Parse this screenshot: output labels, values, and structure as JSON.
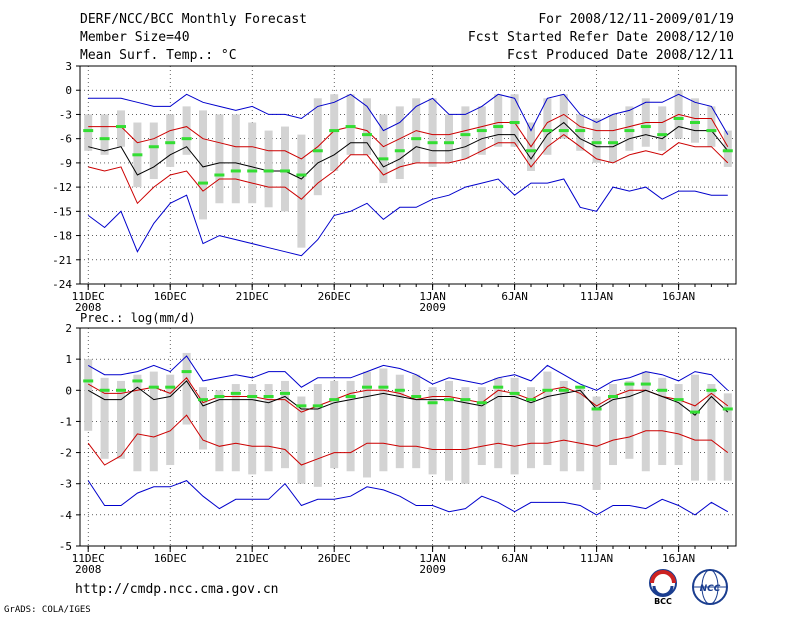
{
  "header": {
    "title": "DERF/NCC/BCC Monthly Forecast",
    "member_size": "Member Size=40",
    "variable": "Mean Surf. Temp.: °C",
    "period": "For 2008/12/11-2009/01/19",
    "started": "Fcst Started Refer Date 2008/12/10",
    "produced": "Fcst Produced Date 2008/12/11"
  },
  "footer": {
    "url": "http://cmdp.ncc.cma.gov.cn",
    "grads": "GrADS: COLA/IGES",
    "logo_left": "BCC",
    "logo_right": "NCC"
  },
  "colors": {
    "max": "#0000cc",
    "min": "#0000cc",
    "p_high": "#cc0000",
    "p_low": "#cc0000",
    "mean": "#000000",
    "median": "#33dd33",
    "box": "#d3d3d3"
  },
  "chart_data": [
    {
      "type": "line",
      "title": "",
      "ylabel": "",
      "ylim": [
        -24,
        3
      ],
      "yticks": [
        3,
        0,
        -3,
        -6,
        -9,
        -12,
        -15,
        -18,
        -21,
        -24
      ],
      "xlim": [
        0.5,
        40.5
      ],
      "xticks": [
        {
          "day": 1,
          "label": "11DEC",
          "sub": "2008"
        },
        {
          "day": 6,
          "label": "16DEC",
          "sub": ""
        },
        {
          "day": 11,
          "label": "21DEC",
          "sub": ""
        },
        {
          "day": 16,
          "label": "26DEC",
          "sub": ""
        },
        {
          "day": 22,
          "label": "1JAN",
          "sub": "2009"
        },
        {
          "day": 27,
          "label": "6JAN",
          "sub": ""
        },
        {
          "day": 32,
          "label": "11JAN",
          "sub": ""
        },
        {
          "day": 37,
          "label": "16JAN",
          "sub": ""
        }
      ],
      "days": [
        1,
        2,
        3,
        4,
        5,
        6,
        7,
        8,
        9,
        10,
        11,
        12,
        13,
        14,
        15,
        16,
        17,
        18,
        19,
        20,
        21,
        22,
        23,
        24,
        25,
        26,
        27,
        28,
        29,
        30,
        31,
        32,
        33,
        34,
        35,
        36,
        37,
        38,
        39,
        40
      ],
      "series": [
        {
          "name": "max",
          "color": "#0000cc",
          "values": [
            -1,
            -1,
            -1,
            -1.5,
            -2,
            -2,
            -0.5,
            -1.5,
            -2,
            -2.5,
            -2,
            -3,
            -3,
            -3.5,
            -2,
            -1.5,
            -0.5,
            -2,
            -5,
            -4,
            -2,
            -1,
            -3,
            -3,
            -2,
            -0.5,
            -1,
            -5,
            -1,
            -0.5,
            -3,
            -4,
            -3,
            -2.5,
            -1.5,
            -1.5,
            -0.5,
            -1.5,
            -2,
            -5.5
          ]
        },
        {
          "name": "p_high",
          "color": "#cc0000",
          "values": [
            -4.5,
            -4.5,
            -4.5,
            -6.5,
            -6,
            -5,
            -4.5,
            -6,
            -6.5,
            -7,
            -7,
            -7.5,
            -7.5,
            -8.5,
            -7,
            -5,
            -4.5,
            -5,
            -7,
            -6,
            -5,
            -5.5,
            -5.5,
            -5,
            -4.5,
            -4,
            -4,
            -7,
            -4,
            -3,
            -4.5,
            -5,
            -5,
            -4.5,
            -4,
            -4,
            -3,
            -3.5,
            -3.5,
            -7
          ]
        },
        {
          "name": "mean",
          "color": "#000000",
          "values": [
            -7,
            -7.5,
            -7,
            -10.5,
            -9.5,
            -8,
            -7,
            -9.5,
            -9,
            -9,
            -9.5,
            -10,
            -10,
            -11,
            -9,
            -8,
            -6.5,
            -6.5,
            -9.5,
            -8.5,
            -7,
            -7.5,
            -7.5,
            -7,
            -6,
            -5.5,
            -5.5,
            -8.5,
            -5.5,
            -4,
            -6,
            -7,
            -7,
            -6,
            -5.5,
            -6,
            -4.5,
            -5,
            -5,
            -7.5
          ]
        },
        {
          "name": "p_low",
          "color": "#cc0000",
          "values": [
            -9.5,
            -10,
            -9.5,
            -14,
            -12,
            -10.5,
            -10,
            -12.5,
            -11,
            -11,
            -11.5,
            -12,
            -12,
            -13.5,
            -11.5,
            -10,
            -8,
            -8,
            -10.5,
            -9.5,
            -9,
            -9,
            -9,
            -8.5,
            -7.5,
            -6.5,
            -6.5,
            -9.5,
            -7,
            -5.5,
            -7,
            -8.5,
            -9,
            -8,
            -7.5,
            -8,
            -6.5,
            -7,
            -7,
            -9
          ]
        },
        {
          "name": "min",
          "color": "#0000cc",
          "values": [
            -15.5,
            -17,
            -15,
            -20,
            -16.5,
            -14,
            -13,
            -19,
            -18,
            -18.5,
            -19,
            -19.5,
            -20,
            -20.5,
            -18.5,
            -15.5,
            -15,
            -14,
            -16,
            -14.5,
            -14.5,
            -13.5,
            -13,
            -12,
            -11.5,
            -11,
            -13,
            -11.5,
            -11.5,
            -11,
            -14.5,
            -15,
            -12,
            -12.5,
            -12,
            -13.5,
            -12.5,
            -12.5,
            -13,
            -13
          ]
        }
      ],
      "box_low": [
        -7.5,
        -8,
        -7,
        -12,
        -11,
        -9.5,
        -8,
        -16,
        -14,
        -14,
        -14,
        -14.5,
        -15,
        -19.5,
        -13,
        -10,
        -8,
        -8,
        -11.5,
        -11,
        -9,
        -9.5,
        -9,
        -8.5,
        -8,
        -7,
        -7,
        -10,
        -8,
        -6,
        -7.5,
        -9,
        -9,
        -7.5,
        -7,
        -7.5,
        -6,
        -6.5,
        -7,
        -9.5
      ],
      "box_high": [
        -3,
        -3,
        -2.5,
        -4,
        -4,
        -3,
        -2,
        -2.5,
        -3,
        -3,
        -4,
        -5,
        -4.5,
        -5.5,
        -1,
        -0.5,
        -0.5,
        -1,
        -3,
        -2,
        -1,
        -1,
        -3,
        -2,
        -2,
        -0.5,
        -0.5,
        -4,
        -1,
        -0.5,
        -3,
        -3.5,
        -3,
        -2,
        -1,
        -2,
        0,
        -1,
        -2,
        -5
      ],
      "median": [
        -5,
        -6,
        -4.5,
        -8,
        -7,
        -6.5,
        -6,
        -11.5,
        -10.5,
        -10,
        -10,
        -10,
        -10,
        -10.5,
        -7.5,
        -5,
        -4.5,
        -5.5,
        -8.5,
        -7.5,
        -6,
        -6.5,
        -6.5,
        -5.5,
        -5,
        -4.5,
        -4,
        -7.5,
        -5,
        -5,
        -5,
        -6.5,
        -6.5,
        -5,
        -4.5,
        -5.5,
        -3.5,
        -4,
        -5,
        -7.5
      ]
    },
    {
      "type": "line",
      "title": "Prec.: log(mm/d)",
      "ylabel": "",
      "ylim": [
        -5,
        2
      ],
      "yticks": [
        2,
        1,
        0,
        -1,
        -2,
        -3,
        -4,
        -5
      ],
      "xlim": [
        0.5,
        40.5
      ],
      "xticks": [
        {
          "day": 1,
          "label": "11DEC",
          "sub": "2008"
        },
        {
          "day": 6,
          "label": "16DEC",
          "sub": ""
        },
        {
          "day": 11,
          "label": "21DEC",
          "sub": ""
        },
        {
          "day": 16,
          "label": "26DEC",
          "sub": ""
        },
        {
          "day": 22,
          "label": "1JAN",
          "sub": "2009"
        },
        {
          "day": 27,
          "label": "6JAN",
          "sub": ""
        },
        {
          "day": 32,
          "label": "11JAN",
          "sub": ""
        },
        {
          "day": 37,
          "label": "16JAN",
          "sub": ""
        }
      ],
      "days": [
        1,
        2,
        3,
        4,
        5,
        6,
        7,
        8,
        9,
        10,
        11,
        12,
        13,
        14,
        15,
        16,
        17,
        18,
        19,
        20,
        21,
        22,
        23,
        24,
        25,
        26,
        27,
        28,
        29,
        30,
        31,
        32,
        33,
        34,
        35,
        36,
        37,
        38,
        39,
        40
      ],
      "series": [
        {
          "name": "max",
          "color": "#0000cc",
          "values": [
            0.8,
            0.5,
            0.5,
            0.6,
            0.8,
            0.6,
            1.1,
            0.3,
            0.4,
            0.5,
            0.4,
            0.6,
            0.6,
            0.1,
            0.4,
            0.4,
            0.4,
            0.6,
            0.8,
            0.7,
            0.5,
            0.2,
            0.4,
            0.3,
            0.2,
            0.4,
            0.5,
            0.3,
            0.8,
            0.5,
            0.2,
            0,
            0.3,
            0.4,
            0.6,
            0.5,
            0.3,
            0.6,
            0.5,
            0
          ]
        },
        {
          "name": "p_high",
          "color": "#cc0000",
          "values": [
            0.2,
            -0.1,
            -0.1,
            0,
            0.1,
            -0.1,
            0.4,
            -0.4,
            -0.2,
            -0.2,
            -0.2,
            -0.3,
            -0.3,
            -0.7,
            -0.5,
            -0.3,
            -0.1,
            0,
            0,
            -0.1,
            -0.3,
            -0.2,
            -0.2,
            -0.3,
            -0.4,
            0,
            -0.1,
            -0.3,
            0,
            0.1,
            -0.1,
            -0.5,
            -0.2,
            0,
            0,
            -0.2,
            -0.3,
            -0.5,
            -0.1,
            -0.5
          ]
        },
        {
          "name": "mean",
          "color": "#000000",
          "values": [
            0,
            -0.3,
            -0.3,
            0.1,
            -0.3,
            -0.2,
            0.3,
            -0.5,
            -0.3,
            -0.3,
            -0.3,
            -0.4,
            -0.2,
            -0.6,
            -0.6,
            -0.4,
            -0.3,
            -0.2,
            -0.1,
            -0.2,
            -0.3,
            -0.3,
            -0.3,
            -0.4,
            -0.5,
            -0.2,
            -0.2,
            -0.4,
            -0.2,
            -0.1,
            0,
            -0.6,
            -0.3,
            -0.2,
            0,
            -0.2,
            -0.4,
            -0.8,
            -0.2,
            -0.7
          ]
        },
        {
          "name": "p_low",
          "color": "#cc0000",
          "values": [
            -1.7,
            -2.4,
            -2.1,
            -1.4,
            -1.5,
            -1.3,
            -0.8,
            -1.6,
            -1.8,
            -1.7,
            -1.8,
            -1.8,
            -1.9,
            -2.4,
            -2.2,
            -2,
            -2,
            -1.7,
            -1.7,
            -1.8,
            -1.8,
            -1.9,
            -1.9,
            -1.9,
            -1.8,
            -1.7,
            -1.8,
            -1.7,
            -1.7,
            -1.6,
            -1.7,
            -1.8,
            -1.6,
            -1.5,
            -1.3,
            -1.3,
            -1.4,
            -1.6,
            -1.6,
            -2
          ]
        },
        {
          "name": "min",
          "color": "#0000cc",
          "values": [
            -2.9,
            -3.7,
            -3.7,
            -3.3,
            -3.1,
            -3.1,
            -2.9,
            -3.4,
            -3.8,
            -3.5,
            -3.5,
            -3.5,
            -3,
            -3.7,
            -3.5,
            -3.5,
            -3.4,
            -3.1,
            -3.2,
            -3.4,
            -3.7,
            -3.7,
            -3.9,
            -3.8,
            -3.4,
            -3.6,
            -3.9,
            -3.6,
            -3.6,
            -3.6,
            -3.7,
            -4,
            -3.7,
            -3.7,
            -3.8,
            -3.5,
            -3.7,
            -4,
            -3.6,
            -3.9
          ]
        },
        {
          "name": "median_line",
          "color": "#008800",
          "values": [
            0,
            -0.3,
            -0.3,
            0.1,
            -0.3,
            -0.2,
            0.3,
            -0.5,
            -0.3,
            -0.3,
            -0.3,
            -0.4,
            -0.2,
            -0.6,
            -0.6,
            -0.4,
            -0.3,
            -0.2,
            -0.1,
            -0.2,
            -0.3,
            -0.3,
            -0.3,
            -0.4,
            -0.5,
            -0.2,
            -0.2,
            -0.4,
            -0.2,
            -0.1,
            0,
            -0.6,
            -0.3,
            -0.2,
            0,
            -0.2,
            -0.4,
            -0.8,
            -0.2,
            -0.7
          ]
        }
      ],
      "box_low": [
        -1.3,
        -2.2,
        -2.2,
        -2.6,
        -2.6,
        -2.4,
        -1.1,
        -1.9,
        -2.6,
        -2.6,
        -2.7,
        -2.6,
        -2.5,
        -3,
        -3.1,
        -2.5,
        -2.6,
        -2.8,
        -2.6,
        -2.5,
        -2.5,
        -2.7,
        -2.9,
        -3,
        -2.4,
        -2.5,
        -2.7,
        -2.5,
        -2.4,
        -2.6,
        -2.6,
        -3.2,
        -2.4,
        -2.2,
        -2.6,
        -2.4,
        -2.4,
        -2.9,
        -2.9,
        -2.9
      ],
      "box_high": [
        1,
        0.4,
        0.3,
        0.5,
        0.6,
        0.5,
        1.2,
        0.1,
        0,
        0.2,
        0.2,
        0.2,
        0.3,
        -0.2,
        0.2,
        0.3,
        0.3,
        0.6,
        0.7,
        0.5,
        0.5,
        0.1,
        0.3,
        0.1,
        0.1,
        0.4,
        0.4,
        0.1,
        0.6,
        0.3,
        0.1,
        -0.2,
        0.2,
        0.3,
        0.6,
        0.4,
        0.2,
        0.5,
        0.2,
        -0.1
      ],
      "median": [
        0.3,
        0,
        0,
        0.3,
        0.1,
        0.1,
        0.6,
        -0.3,
        -0.2,
        -0.1,
        -0.2,
        -0.2,
        -0.1,
        -0.5,
        -0.5,
        -0.3,
        -0.2,
        0.1,
        0.1,
        0,
        -0.2,
        -0.4,
        -0.3,
        -0.3,
        -0.4,
        0.1,
        -0.1,
        -0.3,
        0,
        0,
        0.1,
        -0.6,
        -0.2,
        0.2,
        0.2,
        0,
        -0.3,
        -0.7,
        0,
        -0.6
      ]
    }
  ]
}
